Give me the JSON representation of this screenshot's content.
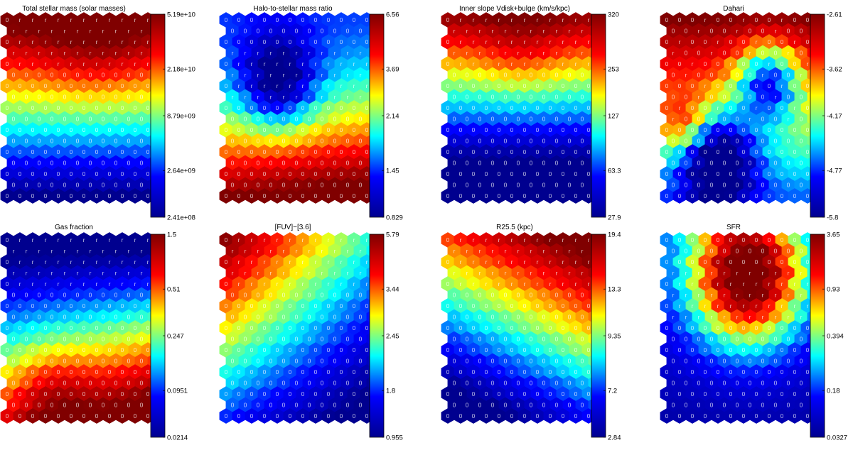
{
  "chart_data": [
    {
      "type": "heatmap",
      "title": "Total stellar mass (solar masses)",
      "colorbar_ticks": [
        "5.19e+10",
        "2.18e+10",
        "8.79e+09",
        "2.64e+09",
        "2.41e+08"
      ],
      "label_mode": "top_r"
    },
    {
      "type": "heatmap",
      "title": "Halo-to-stellar mass ratio",
      "colorbar_ticks": [
        "6.56",
        "3.69",
        "2.14",
        "1.45",
        "0.829"
      ],
      "label_mode": "mid_r"
    },
    {
      "type": "heatmap",
      "title": "Inner slope Vdisk+bulge (km/s/kpc)",
      "colorbar_ticks": [
        "320",
        "253",
        "127",
        "63.3",
        "27.9"
      ],
      "label_mode": "top_r"
    },
    {
      "type": "heatmap",
      "title": "Dahari",
      "colorbar_ticks": [
        "-2.61",
        "-3.62",
        "-4.17",
        "-4.77",
        "-5.8"
      ],
      "label_mode": "mix"
    },
    {
      "type": "heatmap",
      "title": "Gas fraction",
      "colorbar_ticks": [
        "1.5",
        "0.51",
        "0.247",
        "0.0951",
        "0.0214"
      ],
      "label_mode": "top_r"
    },
    {
      "type": "heatmap",
      "title": "[FUV]−[3.6]",
      "colorbar_ticks": [
        "5.79",
        "3.44",
        "2.45",
        "1.8",
        "0.955"
      ],
      "label_mode": "top_r"
    },
    {
      "type": "heatmap",
      "title": "R25.5 (kpc)",
      "colorbar_ticks": [
        "19.4",
        "13.3",
        "9.35",
        "7.2",
        "2.84"
      ],
      "label_mode": "top_r"
    },
    {
      "type": "heatmap",
      "title": "SFR",
      "colorbar_ticks": [
        "3.65",
        "0.93",
        "0.394",
        "0.18",
        "0.0327"
      ],
      "label_mode": "mid_r"
    }
  ],
  "colormap": [
    "#00008f",
    "#0000ff",
    "#00ffff",
    "#ffff00",
    "#ff0000",
    "#800000"
  ],
  "cell_labels": [
    "0",
    "r"
  ]
}
